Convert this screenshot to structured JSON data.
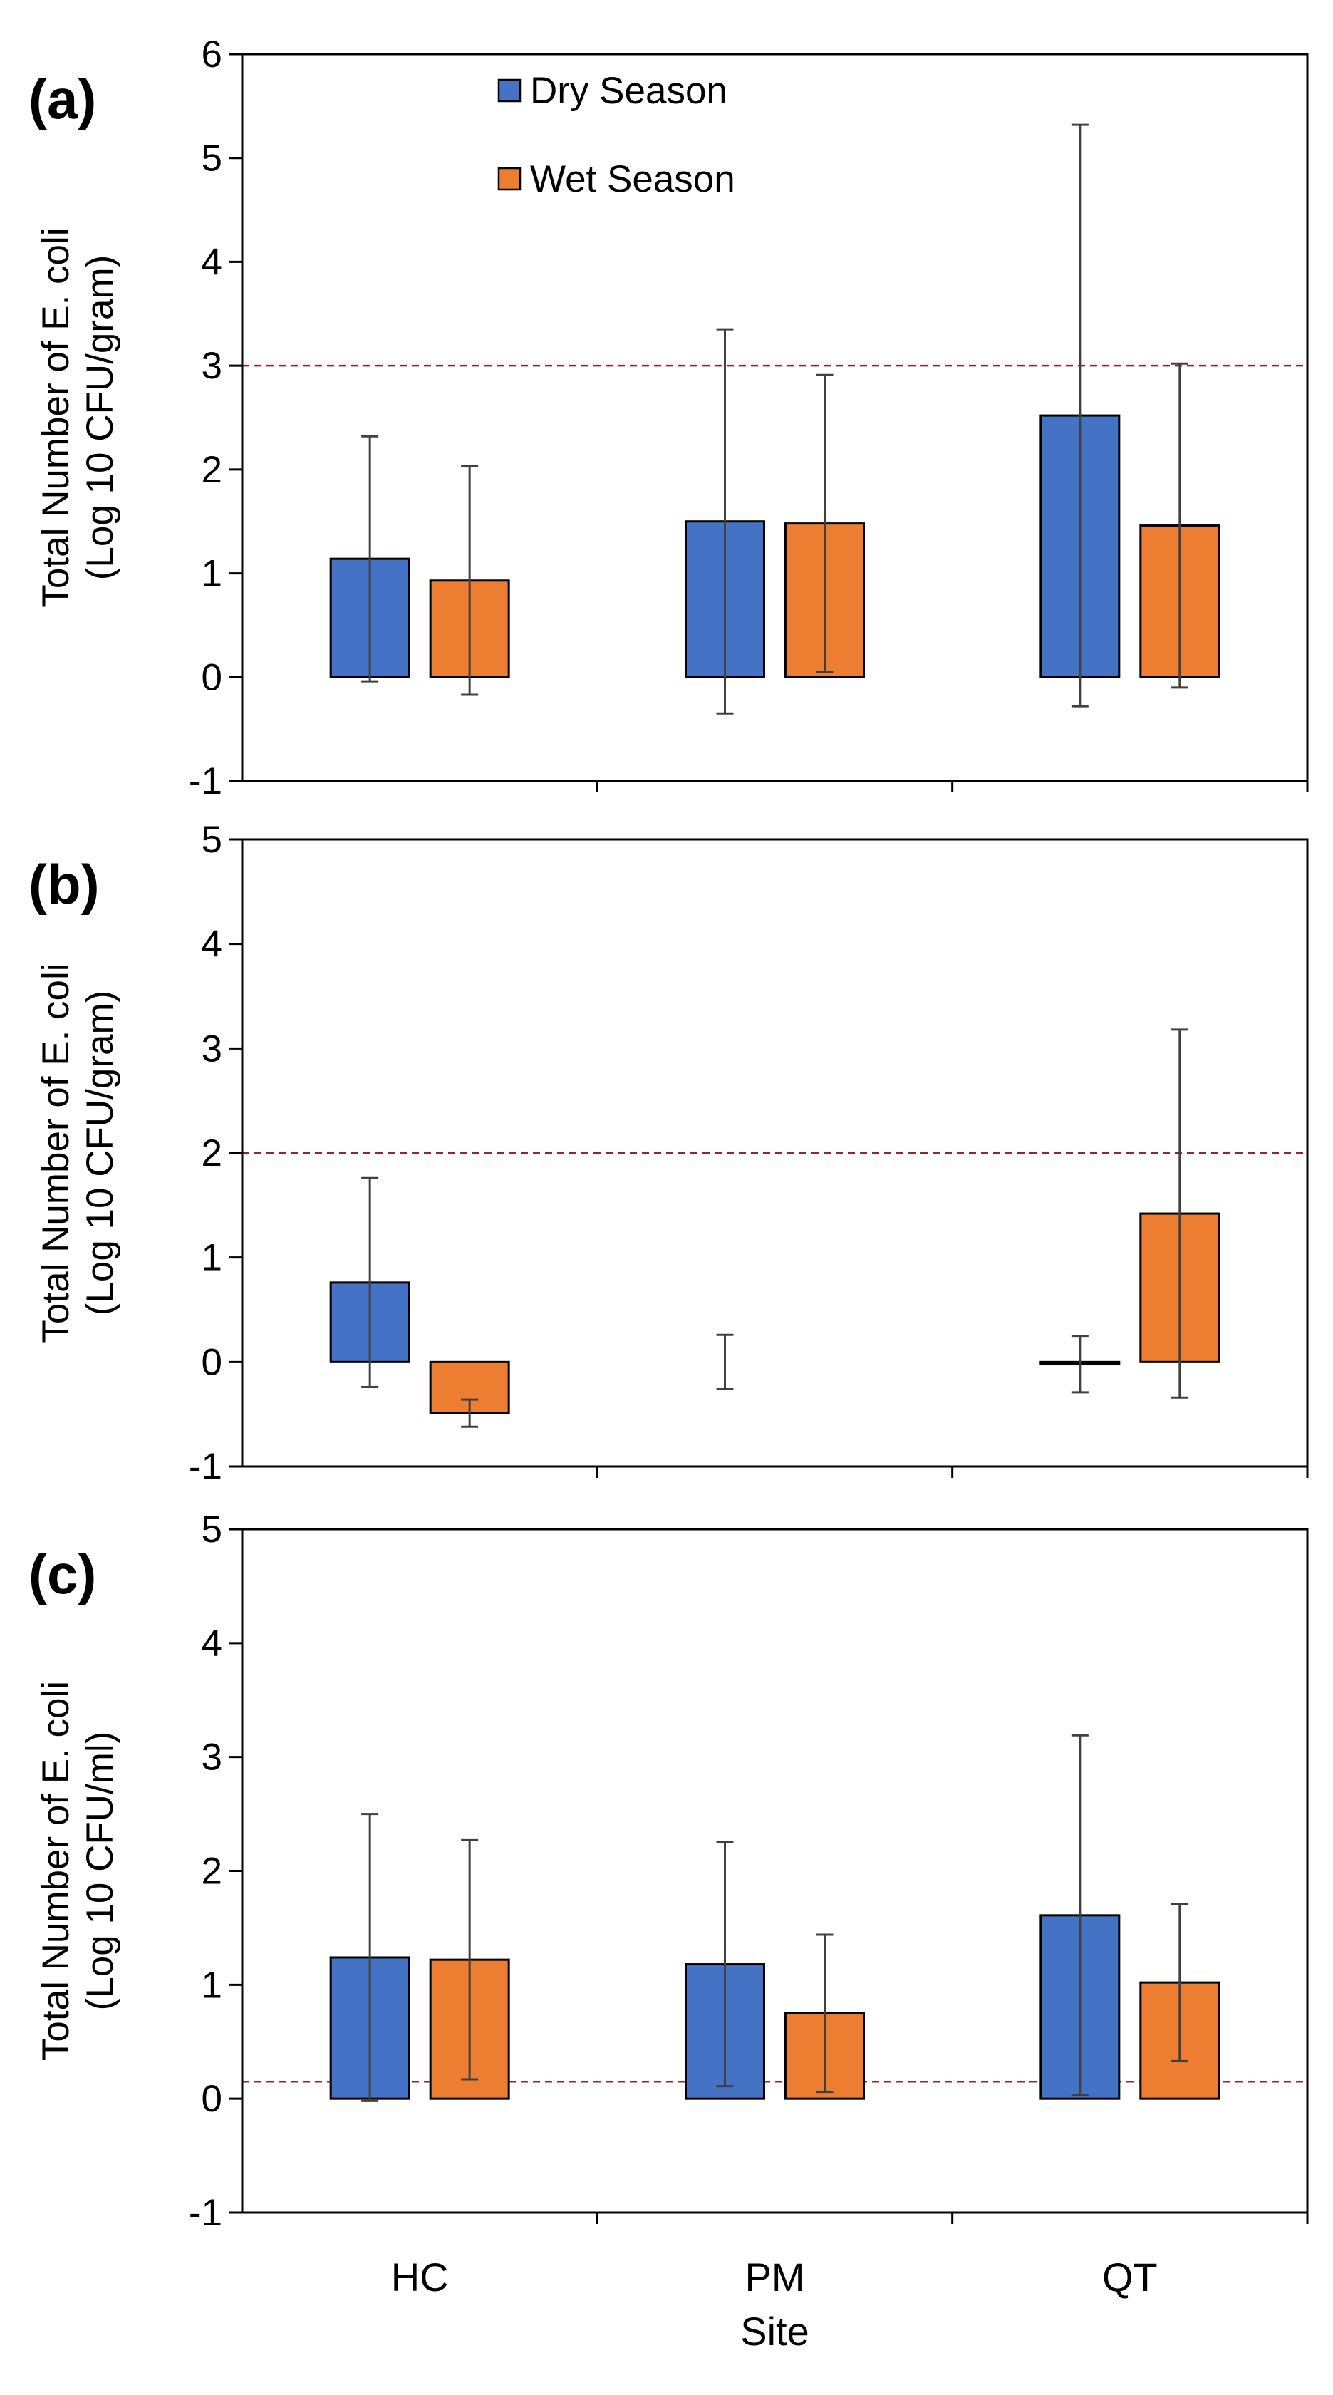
{
  "chart_data": [
    {
      "type": "bar",
      "panel_label": "(a)",
      "ylabel": [
        "Total Number of E. coli",
        "(Log 10 CFU/gram)"
      ],
      "ylim": [
        -1,
        6
      ],
      "yticks": [
        -1,
        0,
        1,
        2,
        3,
        4,
        5,
        6
      ],
      "categories": [
        "HC",
        "PM",
        "QT"
      ],
      "series": [
        {
          "name": "Dry Season",
          "values": [
            1.14,
            1.5,
            2.52
          ],
          "errors": [
            1.18,
            1.85,
            2.8
          ]
        },
        {
          "name": "Wet Season",
          "values": [
            0.93,
            1.48,
            1.46
          ],
          "errors": [
            1.1,
            1.43,
            1.56
          ]
        }
      ],
      "reference_line": 3,
      "legend": true,
      "legend_position": "top-left"
    },
    {
      "type": "bar",
      "panel_label": "(b)",
      "ylabel": [
        "Total Number of E. coli",
        "(Log 10 CFU/gram)"
      ],
      "ylim": [
        -1,
        5
      ],
      "yticks": [
        -1,
        0,
        1,
        2,
        3,
        4,
        5
      ],
      "categories": [
        "HC",
        "PM",
        "QT"
      ],
      "series": [
        {
          "name": "Dry Season",
          "values": [
            0.76,
            0.0,
            -0.02
          ],
          "errors": [
            1.0,
            0.26,
            0.27
          ]
        },
        {
          "name": "Wet Season",
          "values": [
            -0.49,
            null,
            1.42
          ],
          "errors": [
            0.13,
            null,
            1.76
          ]
        }
      ],
      "reference_line": 2,
      "legend": false
    },
    {
      "type": "bar",
      "panel_label": "(c)",
      "ylabel": [
        "Total Number of E. coli",
        "(Log 10 CFU/ml)"
      ],
      "ylim": [
        -1,
        5
      ],
      "yticks": [
        -1,
        0,
        1,
        2,
        3,
        4,
        5
      ],
      "categories": [
        "HC",
        "PM",
        "QT"
      ],
      "series": [
        {
          "name": "Dry Season",
          "values": [
            1.24,
            1.18,
            1.61
          ],
          "errors": [
            1.26,
            1.07,
            1.58
          ]
        },
        {
          "name": "Wet Season",
          "values": [
            1.22,
            0.75,
            1.02
          ],
          "errors": [
            1.05,
            0.69,
            0.69
          ]
        }
      ],
      "reference_line": 0.15,
      "legend": false,
      "xlabel": "Site"
    }
  ],
  "colors": {
    "dry": "#4472c4",
    "wet": "#ed7d31",
    "reference_line": "#8b2a2a",
    "axis": "#000000",
    "error_bar": "#404040"
  }
}
